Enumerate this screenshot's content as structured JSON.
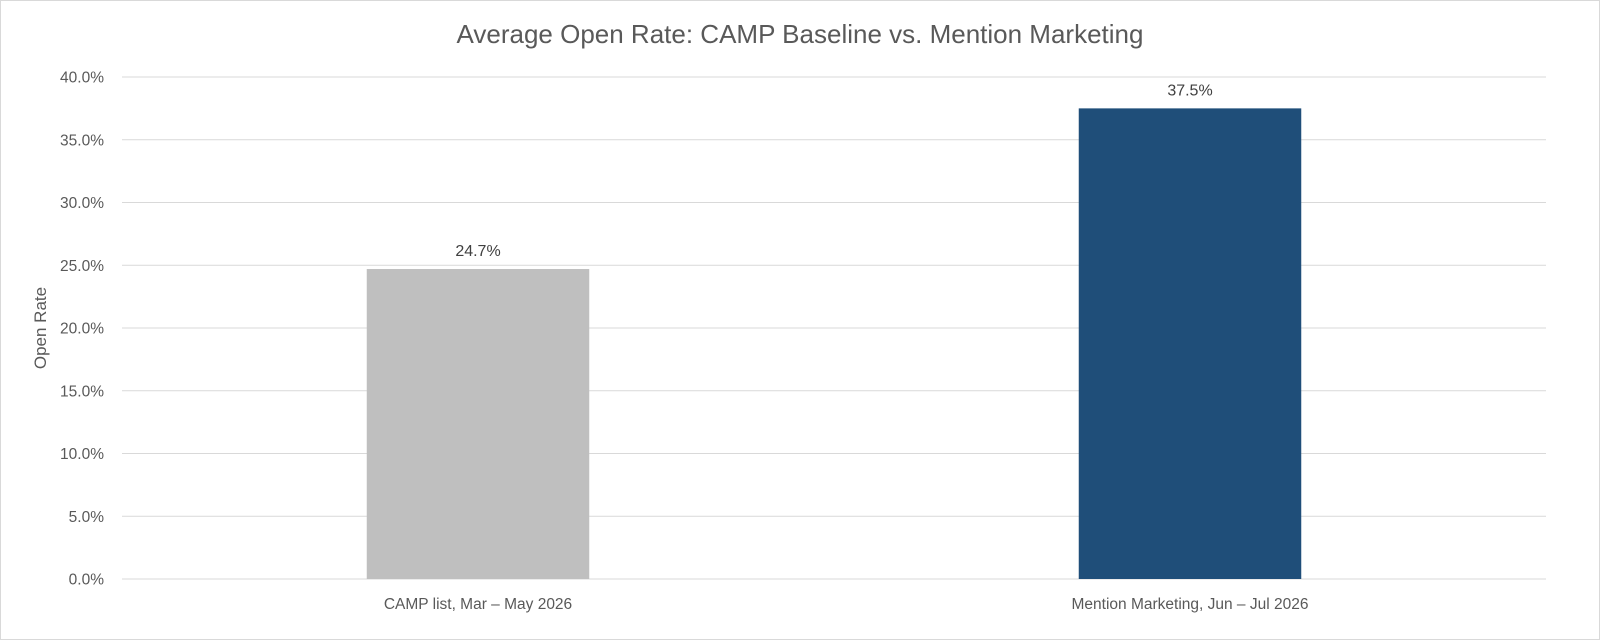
{
  "chart_data": {
    "type": "bar",
    "title": "Average Open Rate: CAMP Baseline vs. Mention Marketing",
    "xlabel": "",
    "ylabel": "Open Rate",
    "categories": [
      "CAMP list, Mar – May 2026",
      "Mention Marketing, Jun – Jul 2026"
    ],
    "values": [
      0.247,
      0.375
    ],
    "data_labels": [
      "24.7%",
      "37.5%"
    ],
    "bar_colors": [
      "#bfbfbf",
      "#1f4e79"
    ],
    "ylim": [
      0,
      0.4
    ],
    "yticks": [
      0,
      0.05,
      0.1,
      0.15,
      0.2,
      0.25,
      0.3,
      0.35,
      0.4
    ],
    "ytick_labels": [
      "0.0%",
      "5.0%",
      "10.0%",
      "15.0%",
      "20.0%",
      "25.0%",
      "30.0%",
      "35.0%",
      "40.0%"
    ],
    "grid": true,
    "legend": false
  }
}
